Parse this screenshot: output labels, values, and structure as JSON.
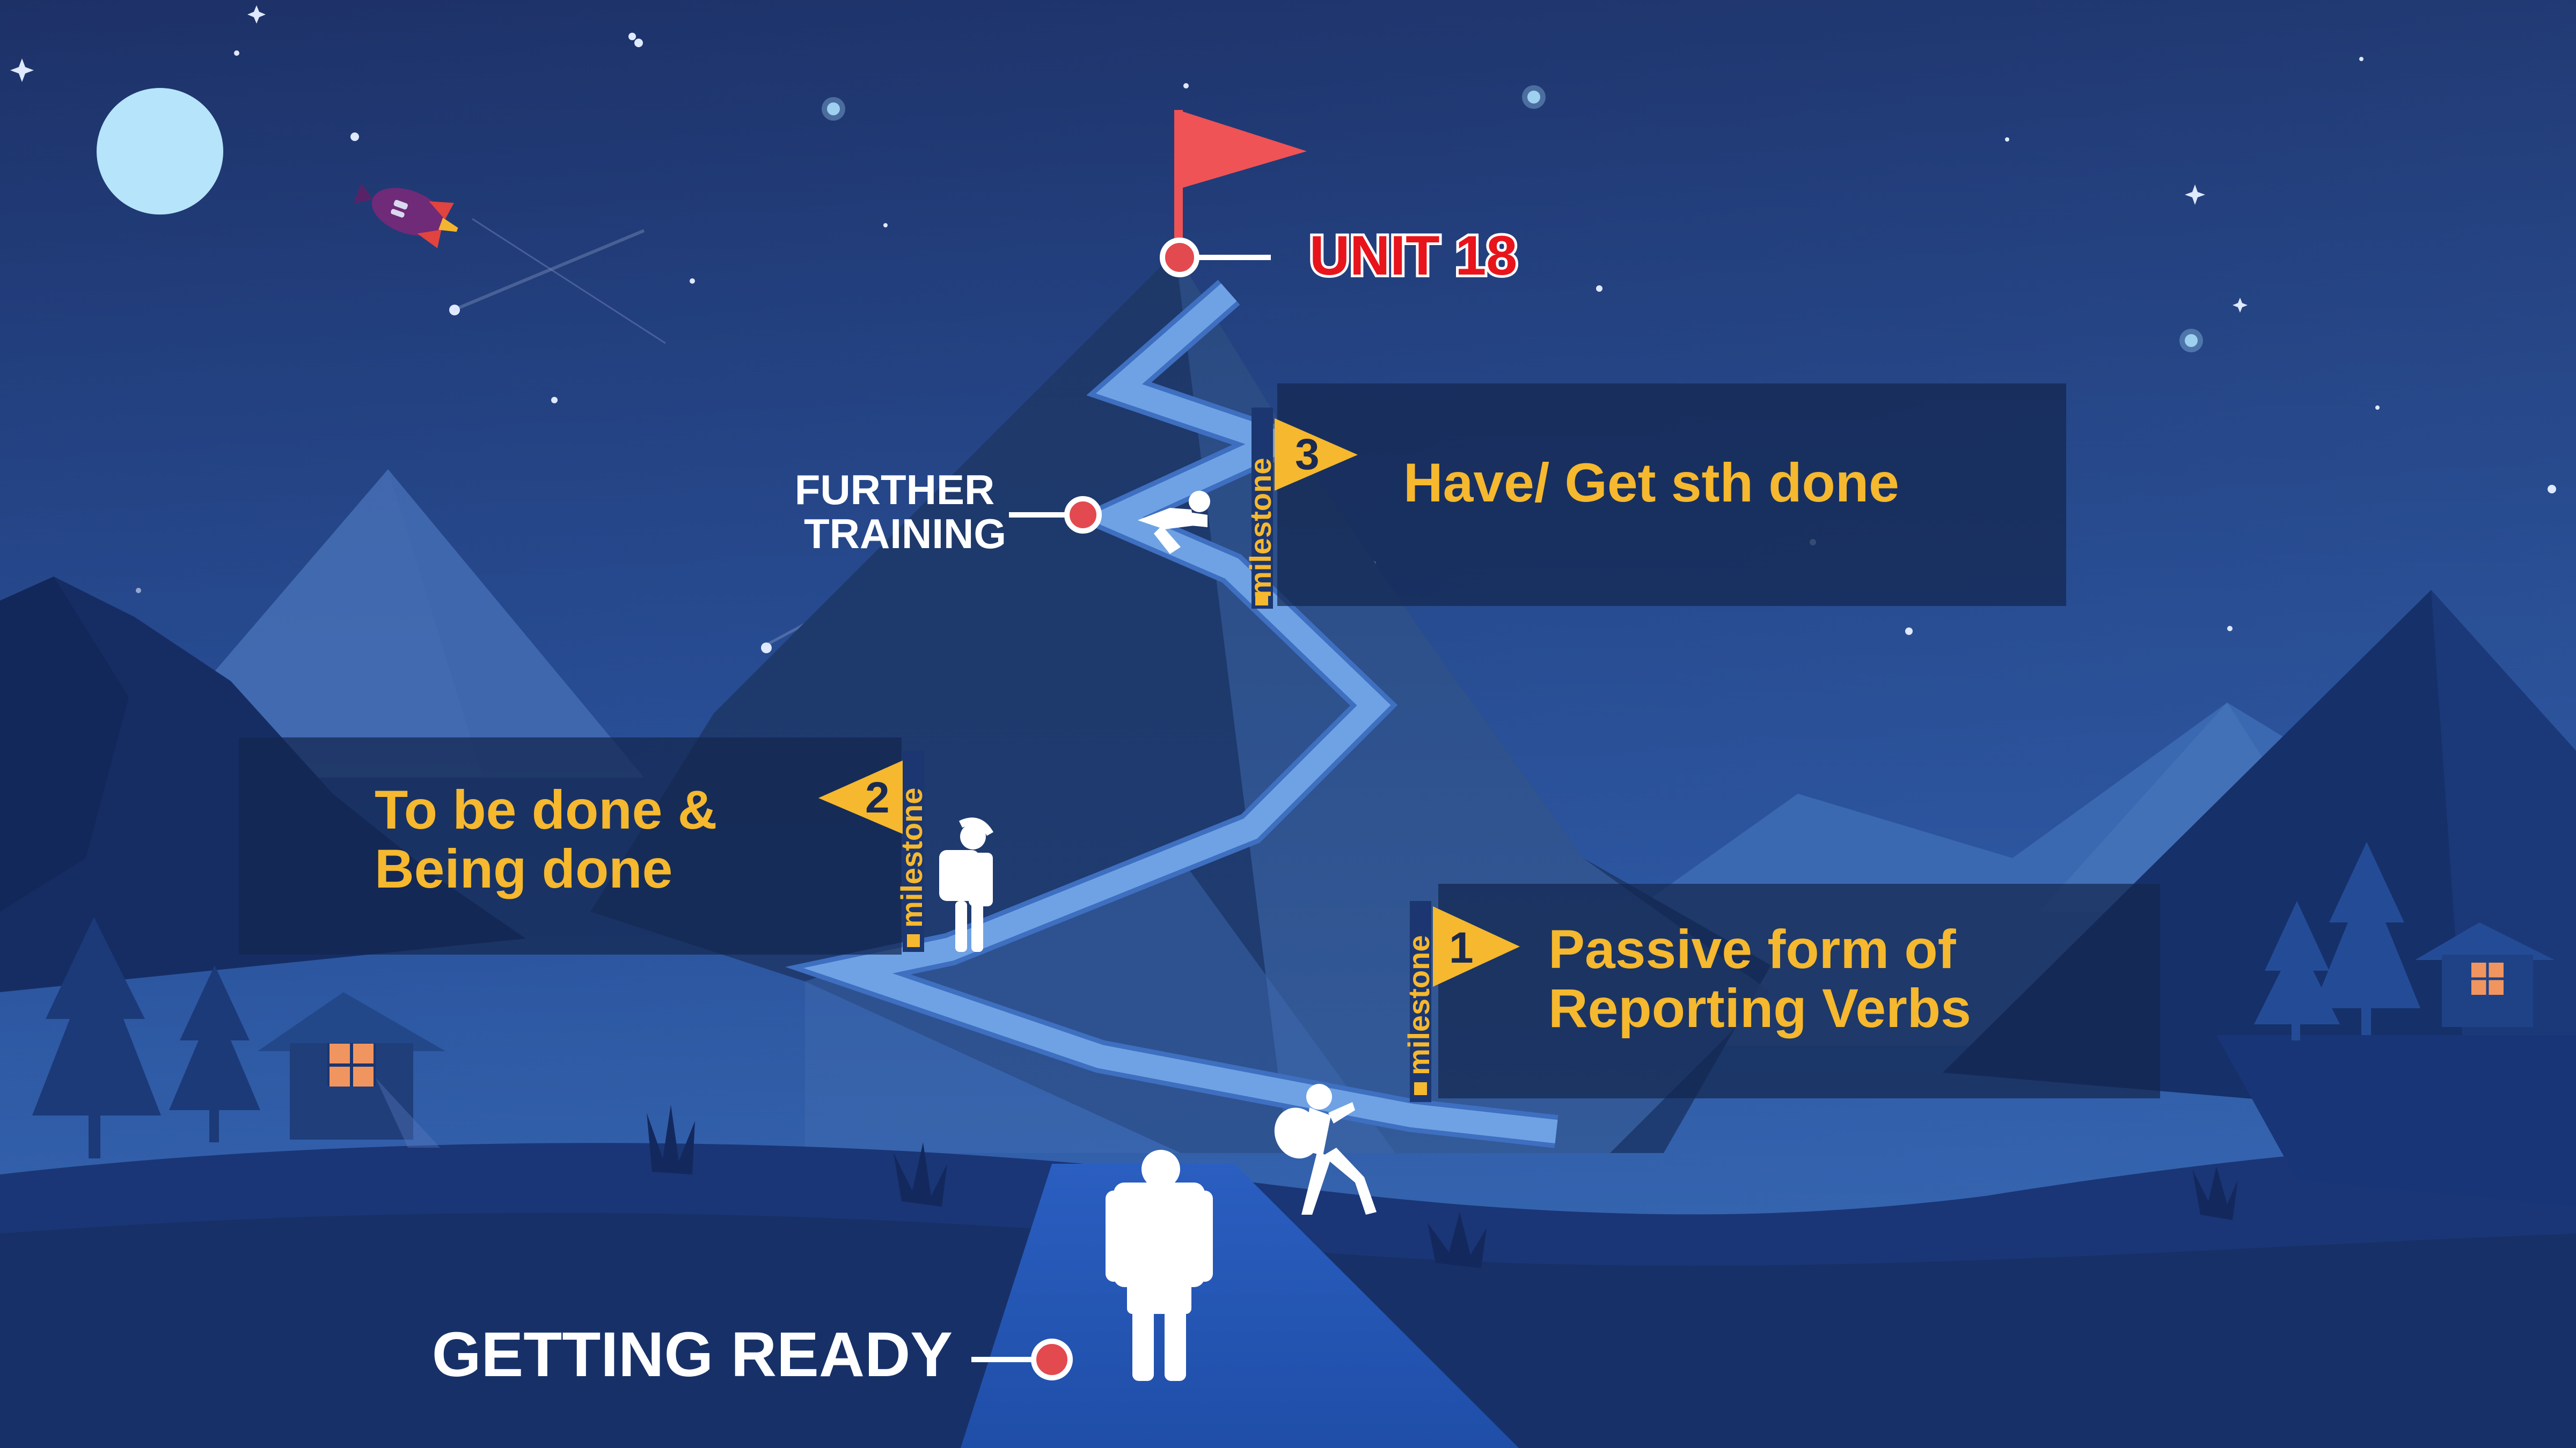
{
  "journey": {
    "summit_label": "UNIT 18",
    "further_training_line1": "FURTHER",
    "further_training_line2": "TRAINING",
    "start_label": "GETTING READY"
  },
  "milestones": [
    {
      "number": "1",
      "tag": "milestone",
      "title_line1": "Passive form of",
      "title_line2": "Reporting Verbs"
    },
    {
      "number": "2",
      "tag": "milestone",
      "title_line1": "To be done &",
      "title_line2": "Being done"
    },
    {
      "number": "3",
      "tag": "milestone",
      "title_line1": "Have/ Get sth done"
    }
  ],
  "colors": {
    "sky_top": "#1d3167",
    "sky_bottom": "#2b5aa6",
    "accent_yellow": "#f5b82e",
    "marker_red": "#e24a4f",
    "flag_red": "#ef5356",
    "path_blue": "#6fa2e4",
    "summit_text": "#e8141c"
  }
}
